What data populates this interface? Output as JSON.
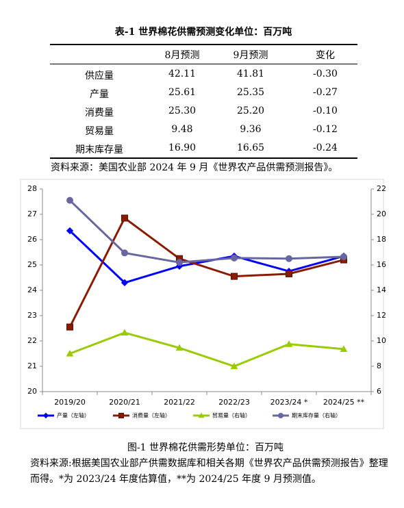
{
  "table": {
    "caption": "表-1 世界棉花供需预测变化单位：百万吨",
    "columns": [
      "8月预测",
      "9月预测",
      "变化"
    ],
    "rows": [
      [
        "供应量",
        "42.11",
        "41.81",
        "-0.30"
      ],
      [
        "产量",
        "25.61",
        "25.35",
        "-0.27"
      ],
      [
        "消费量",
        "25.30",
        "25.20",
        "-0.10"
      ],
      [
        "贸易量",
        "9.48",
        "9.36",
        "-0.12"
      ],
      [
        "期末库存量",
        "16.90",
        "16.65",
        "-0.24"
      ]
    ],
    "source": "资料来源：美国农业部 2024 年 9 月《世界农产品供需预测报告》。"
  },
  "chart_data": {
    "type": "line",
    "categories": [
      "2019/20",
      "2020/21",
      "2021/22",
      "2022/23",
      "2023/24 *",
      "2024/25 **"
    ],
    "series": [
      {
        "name": "产量（左轴）",
        "color": "#0000ff",
        "marker": "diamond",
        "values": [
          26.35,
          24.3,
          24.95,
          25.35,
          24.75,
          25.35
        ]
      },
      {
        "name": "消费量（左轴）",
        "color": "#8b1a00",
        "marker": "square",
        "values": [
          22.55,
          26.85,
          25.25,
          24.55,
          24.65,
          25.2
        ]
      },
      {
        "name": "贸易量（右轴）",
        "color": "#99cc00",
        "marker": "triangle",
        "axis": "y2",
        "values": [
          9.0,
          10.65,
          9.45,
          8.0,
          9.75,
          9.36
        ]
      },
      {
        "name": "期末库存量（右轴）",
        "color": "#6666a0",
        "marker": "circle",
        "axis": "y2",
        "values": [
          21.1,
          16.95,
          16.2,
          16.55,
          16.5,
          16.65
        ]
      }
    ],
    "ylim": [
      20,
      28
    ],
    "yticks": [
      20,
      21,
      22,
      23,
      24,
      25,
      26,
      27,
      28
    ],
    "y2lim": [
      6,
      22
    ],
    "y2ticks": [
      6,
      8,
      10,
      12,
      14,
      16,
      18,
      20,
      22
    ],
    "grid": false,
    "legend": "bottom"
  },
  "figure": {
    "caption": "图-1 世界棉花供需形势单位：百万吨",
    "note": "资料来源:根据美国农业部产供需数据库和相关各期《世界农产品供需预测报告》整理而得。*为 2023/24 年度估算值，**为 2024/25 年度 9 月预测值。"
  }
}
